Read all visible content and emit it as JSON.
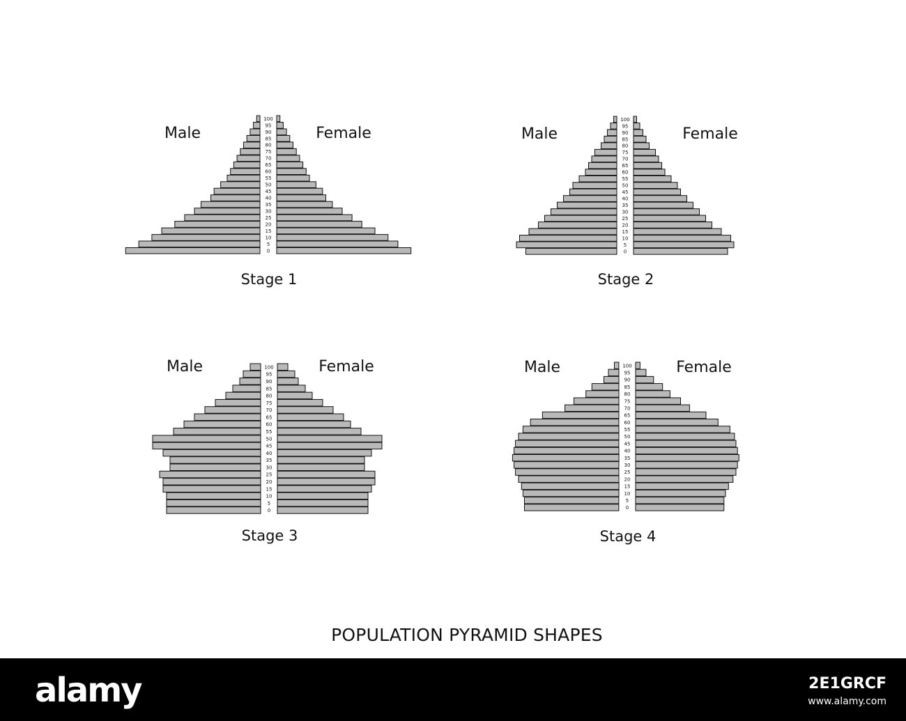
{
  "title": "POPULATION PYRAMID SHAPES",
  "colors": {
    "bar_fill": "#b9b9b9",
    "bar_stroke": "#111111",
    "background": "#ffffff",
    "footer": "#000000"
  },
  "footer": {
    "logo": "alamy",
    "image_id": "2E1GRCF",
    "url": "www.alamy.com"
  },
  "chart_data": [
    {
      "type": "bar",
      "title": "Stage 1",
      "left_label": "Male",
      "right_label": "Female",
      "categories": [
        "100",
        "95",
        "90",
        "85",
        "80",
        "75",
        "70",
        "65",
        "60",
        "55",
        "50",
        "45",
        "40",
        "35",
        "30",
        "25",
        "20",
        "15",
        "10",
        "5",
        "0"
      ],
      "series": [
        {
          "name": "Male",
          "values": [
            1,
            2,
            3,
            4,
            5,
            6,
            7,
            8,
            9,
            10,
            12,
            14,
            15,
            18,
            20,
            23,
            26,
            30,
            33,
            37,
            41
          ]
        },
        {
          "name": "Female",
          "values": [
            1,
            2,
            3,
            4,
            5,
            6,
            7,
            8,
            9,
            10,
            12,
            14,
            15,
            17,
            20,
            23,
            26,
            30,
            34,
            37,
            41
          ]
        }
      ]
    },
    {
      "type": "bar",
      "title": "Stage 2",
      "left_label": "Male",
      "right_label": "Female",
      "categories": [
        "100",
        "95",
        "90",
        "85",
        "80",
        "75",
        "70",
        "65",
        "60",
        "55",
        "50",
        "45",
        "40",
        "35",
        "30",
        "25",
        "20",
        "15",
        "10",
        "5",
        "0"
      ],
      "series": [
        {
          "name": "Male",
          "values": [
            1,
            2,
            3,
            4,
            5,
            7,
            8,
            9,
            10,
            12,
            14,
            15,
            17,
            19,
            21,
            23,
            25,
            28,
            31,
            32,
            29
          ]
        },
        {
          "name": "Female",
          "values": [
            1,
            2,
            3,
            4,
            5,
            7,
            8,
            9,
            10,
            12,
            14,
            15,
            17,
            19,
            21,
            23,
            25,
            28,
            31,
            32,
            30
          ]
        }
      ]
    },
    {
      "type": "bar",
      "title": "Stage 3",
      "left_label": "Male",
      "right_label": "Female",
      "categories": [
        "100",
        "95",
        "90",
        "85",
        "80",
        "75",
        "70",
        "65",
        "60",
        "55",
        "50",
        "45",
        "40",
        "35",
        "30",
        "25",
        "20",
        "15",
        "10",
        "5",
        "0"
      ],
      "series": [
        {
          "name": "Male",
          "values": [
            3,
            5,
            6,
            8,
            10,
            13,
            16,
            19,
            22,
            25,
            31,
            31,
            28,
            26,
            26,
            29,
            28,
            28,
            27,
            27,
            27
          ]
        },
        {
          "name": "Female",
          "values": [
            3,
            5,
            6,
            8,
            10,
            13,
            16,
            19,
            21,
            24,
            30,
            30,
            27,
            25,
            25,
            28,
            28,
            27,
            26,
            26,
            26
          ]
        }
      ]
    },
    {
      "type": "bar",
      "title": "Stage 4",
      "left_label": "Male",
      "right_label": "Female",
      "categories": [
        "100",
        "95",
        "90",
        "85",
        "80",
        "75",
        "70",
        "65",
        "60",
        "55",
        "50",
        "45",
        "40",
        "35",
        "30",
        "25",
        "20",
        "15",
        "10",
        "5",
        "0"
      ],
      "series": [
        {
          "name": "Male",
          "values": [
            3,
            7,
            10,
            18,
            22,
            30,
            36,
            51,
            59,
            64,
            67,
            69,
            70,
            71,
            70,
            69,
            67,
            65,
            64,
            63,
            63
          ]
        },
        {
          "name": "Female",
          "values": [
            3,
            7,
            12,
            18,
            23,
            30,
            36,
            47,
            55,
            63,
            66,
            67,
            68,
            69,
            68,
            67,
            65,
            62,
            60,
            59,
            59
          ]
        }
      ]
    }
  ]
}
